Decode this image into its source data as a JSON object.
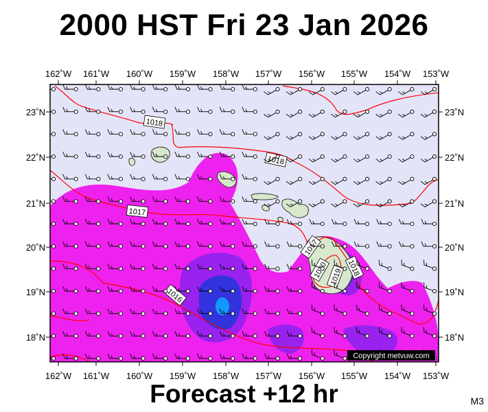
{
  "header": {
    "title": "2000 HST Fri 23 Jan 2026"
  },
  "footer": {
    "forecast": "Forecast +12 hr",
    "model": "M3"
  },
  "map": {
    "lon_labels": [
      "162˚W",
      "161˚W",
      "160˚W",
      "159˚W",
      "158˚W",
      "157˚W",
      "156˚W",
      "155˚W",
      "154˚W",
      "153˚W"
    ],
    "lat_labels": [
      "23˚N",
      "22˚N",
      "21˚N",
      "20˚N",
      "19˚N",
      "18˚N"
    ],
    "isobar_labels": [
      "1018",
      "1018",
      "1017",
      "1017",
      "1016",
      "1020",
      "1019",
      "1018"
    ],
    "copyright": "Copyright metvuw.com",
    "colors": {
      "background": "#e4e4f8",
      "precip_light": "#ee22ee",
      "precip_medium": "#9922ee",
      "precip_heavy": "#3333dd",
      "precip_peak": "#1199ff",
      "isobar": "#ff0000",
      "land": "#d8e8cc"
    }
  }
}
